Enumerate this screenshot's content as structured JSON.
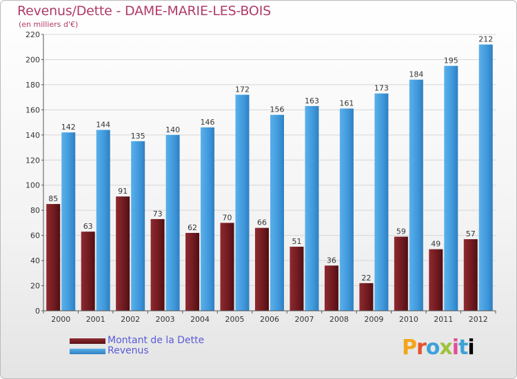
{
  "title": "Revenus/Dette - DAME-MARIE-LES-BOIS",
  "subtitle": "(en milliers d'€)",
  "logo": "Proxiti",
  "colors": {
    "dette": "#7a1f24",
    "revenus": "#4aa3e2",
    "grid": "#d6d6d6",
    "title": "#b03a6a",
    "legend_text": "#5a5ad8"
  },
  "chart_data": {
    "type": "bar",
    "title": "Revenus/Dette - DAME-MARIE-LES-BOIS",
    "subtitle": "(en milliers d'€)",
    "xlabel": "",
    "ylabel": "",
    "ylim": [
      0,
      220
    ],
    "yticks": [
      0,
      20,
      40,
      60,
      80,
      100,
      120,
      140,
      160,
      180,
      200,
      220
    ],
    "grid": true,
    "legend_position": "bottom-left",
    "categories": [
      "2000",
      "2001",
      "2002",
      "2003",
      "2004",
      "2005",
      "2006",
      "2007",
      "2008",
      "2009",
      "2010",
      "2011",
      "2012"
    ],
    "series": [
      {
        "name": "Montant de la Dette",
        "color": "#7a1f24",
        "values": [
          85,
          63,
          91,
          73,
          62,
          70,
          66,
          51,
          36,
          22,
          59,
          49,
          57
        ]
      },
      {
        "name": "Revenus",
        "color": "#4aa3e2",
        "values": [
          142,
          144,
          135,
          140,
          146,
          172,
          156,
          163,
          161,
          173,
          184,
          195,
          212
        ]
      }
    ]
  }
}
